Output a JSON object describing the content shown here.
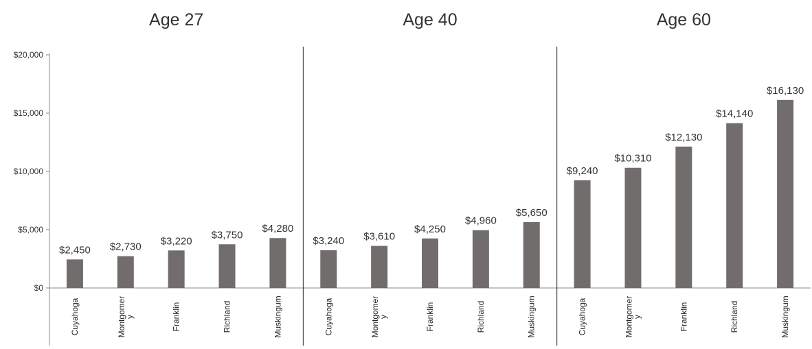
{
  "chart_data": {
    "type": "bar",
    "y_axis": {
      "min": 0,
      "max": 20000,
      "ticks": [
        0,
        5000,
        10000,
        15000,
        20000
      ],
      "tick_labels": [
        "$0",
        "$5,000",
        "$10,000",
        "$15,000",
        "$20,000"
      ]
    },
    "bar_color": "#726d6d",
    "panels": [
      {
        "title": "Age 27",
        "categories": [
          "Cuyahoga",
          "Montgomery",
          "Franklin",
          "Richland",
          "Muskingum"
        ],
        "category_labels": [
          "Cuyahoga",
          "Montgomer\ny",
          "Franklin",
          "Richland",
          "Muskingum"
        ],
        "values": [
          2450,
          2730,
          3220,
          3750,
          4280
        ],
        "value_labels": [
          "$2,450",
          "$2,730",
          "$3,220",
          "$3,750",
          "$4,280"
        ]
      },
      {
        "title": "Age 40",
        "categories": [
          "Cuyahoga",
          "Montgomery",
          "Franklin",
          "Richland",
          "Muskingum"
        ],
        "category_labels": [
          "Cuyahoga",
          "Montgomer\ny",
          "Franklin",
          "Richland",
          "Muskingum"
        ],
        "values": [
          3240,
          3610,
          4250,
          4960,
          5650
        ],
        "value_labels": [
          "$3,240",
          "$3,610",
          "$4,250",
          "$4,960",
          "$5,650"
        ]
      },
      {
        "title": "Age 60",
        "categories": [
          "Cuyahoga",
          "Montgomery",
          "Franklin",
          "Richland",
          "Muskingum"
        ],
        "category_labels": [
          "Cuyahoga",
          "Montgomer\ny",
          "Franklin",
          "Richland",
          "Muskingum"
        ],
        "values": [
          9240,
          10310,
          12130,
          14140,
          16130
        ],
        "value_labels": [
          "$9,240",
          "$10,310",
          "$12,130",
          "$14,140",
          "$16,130"
        ]
      }
    ]
  }
}
